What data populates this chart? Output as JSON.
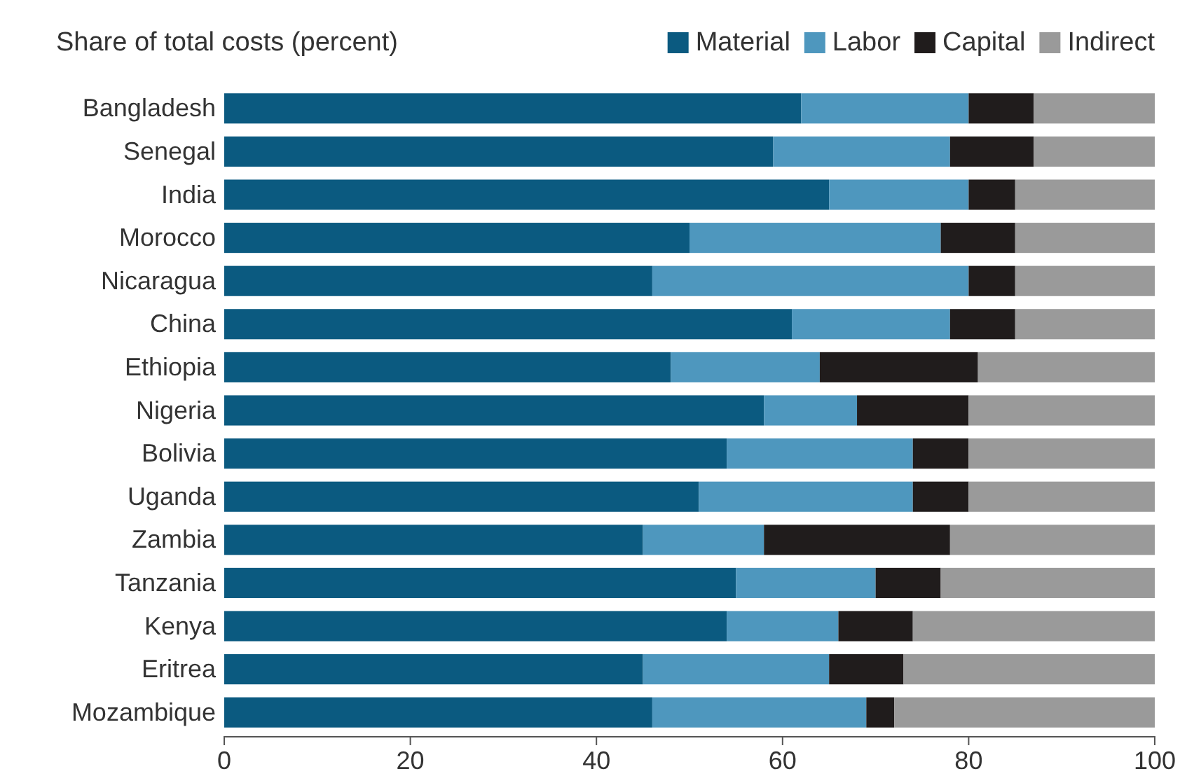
{
  "chart_data": {
    "type": "bar",
    "orientation": "horizontal",
    "stacked": true,
    "title": "Share of total costs (percent)",
    "categories": [
      "Bangladesh",
      "Senegal",
      "India",
      "Morocco",
      "Nicaragua",
      "China",
      "Ethiopia",
      "Nigeria",
      "Bolivia",
      "Uganda",
      "Zambia",
      "Tanzania",
      "Kenya",
      "Eritrea",
      "Mozambique"
    ],
    "series": [
      {
        "name": "Material",
        "color": "#0b5a80",
        "values": [
          62,
          59,
          65,
          50,
          46,
          61,
          48,
          58,
          54,
          51,
          45,
          55,
          54,
          45,
          46
        ]
      },
      {
        "name": "Labor",
        "color": "#4e97be",
        "values": [
          18,
          19,
          15,
          27,
          34,
          17,
          16,
          10,
          20,
          23,
          13,
          15,
          12,
          20,
          23
        ]
      },
      {
        "name": "Capital",
        "color": "#201c1c",
        "values": [
          7,
          9,
          5,
          8,
          5,
          7,
          17,
          12,
          6,
          6,
          20,
          7,
          8,
          8,
          3
        ]
      },
      {
        "name": "Indirect",
        "color": "#9a9a9a",
        "values": [
          13,
          13,
          15,
          15,
          15,
          15,
          19,
          20,
          20,
          20,
          22,
          23,
          26,
          27,
          28
        ]
      }
    ],
    "xlim": [
      0,
      100
    ],
    "xticks": [
      0,
      20,
      40,
      60,
      80,
      100
    ],
    "grid": false,
    "legend": "top right"
  }
}
